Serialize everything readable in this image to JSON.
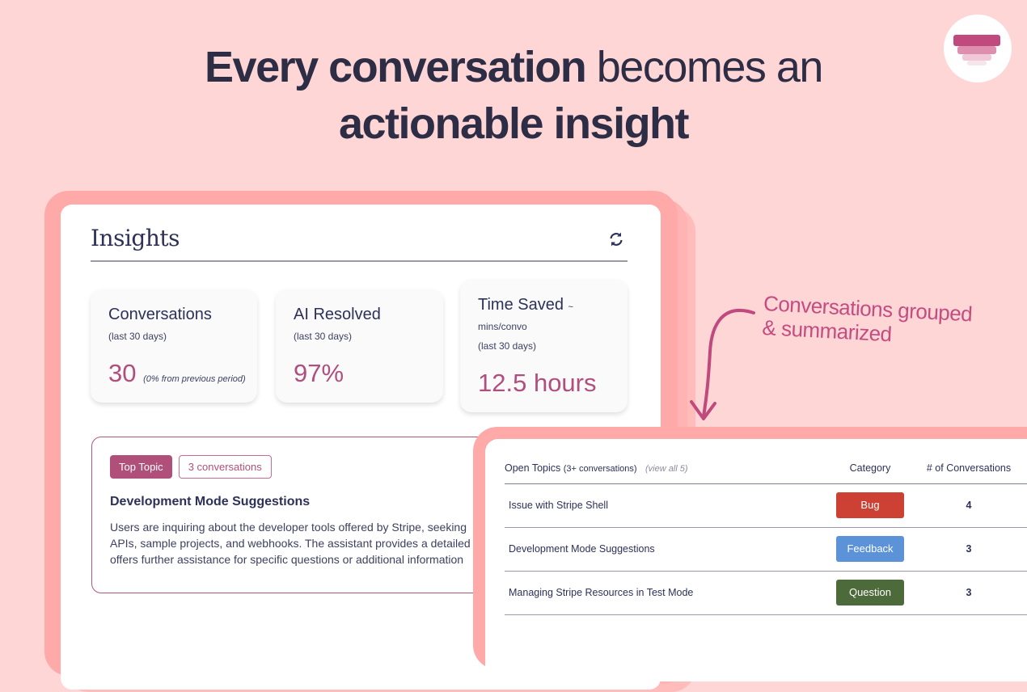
{
  "hero": {
    "line1_bold": "Every conversation",
    "line1_rest": " becomes an",
    "line2_bold": "actionable insight"
  },
  "logo": {
    "colors": [
      "#c04a7e",
      "#de8fb0",
      "#f1c8d8",
      "#f6e6ec"
    ]
  },
  "insights": {
    "title": "Insights",
    "refresh_icon": "refresh-icon",
    "stats": [
      {
        "label": "Conversations",
        "sub": "(last 30 days)",
        "value": "30",
        "note": "(0% from previous period)"
      },
      {
        "label": "AI Resolved",
        "sub": "(last 30 days)",
        "value": "97%"
      },
      {
        "label": "Time Saved",
        "label_suffix": "~",
        "sub": "mins/convo",
        "sub2": "(last 30 days)",
        "value": "12.5 hours"
      }
    ],
    "top_topic": {
      "badge": "Top Topic",
      "count": "3 conversations",
      "title": "Development Mode Suggestions",
      "lines": [
        "Users are inquiring about the developer tools offered by Stripe, seeking",
        "APIs, sample projects, and webhooks. The assistant provides a detailed l",
        "offers further assistance for specific questions or additional information"
      ]
    }
  },
  "annotation": {
    "line1": "Conversations grouped",
    "line2": "& summarized"
  },
  "open_topics": {
    "title": "Open Topics",
    "title_qualifier": "(3+ conversations)",
    "view_all": "(view all 5)",
    "col_category": "Category",
    "col_count": "# of Conversations",
    "rows": [
      {
        "topic": "Issue with Stripe Shell",
        "category": "Bug",
        "color": "#cc4133",
        "count": "4"
      },
      {
        "topic": "Development Mode Suggestions",
        "category": "Feedback",
        "color": "#5b92d8",
        "count": "3"
      },
      {
        "topic": "Managing Stripe Resources in Test Mode",
        "category": "Question",
        "color": "#4d6a3a",
        "count": "3"
      }
    ]
  }
}
